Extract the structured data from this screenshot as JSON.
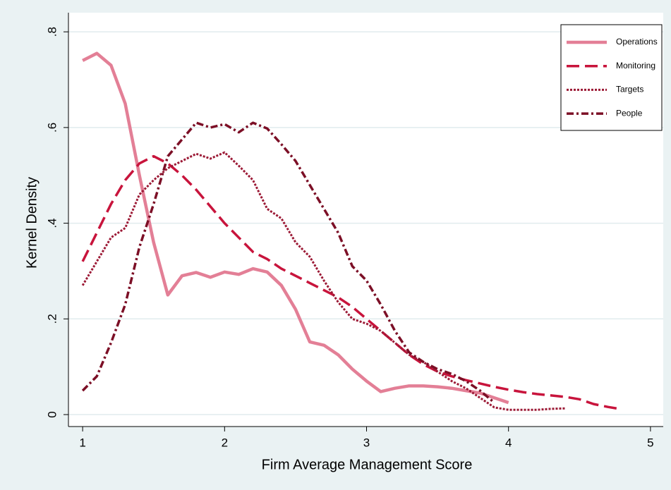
{
  "chart_data": {
    "type": "line",
    "xlabel": "Firm Average Management Score",
    "ylabel": "Kernel Density",
    "x": [
      1.0,
      1.1,
      1.2,
      1.3,
      1.4,
      1.5,
      1.6,
      1.7,
      1.8,
      1.9,
      2.0,
      2.1,
      2.2,
      2.3,
      2.4,
      2.5,
      2.6,
      2.7,
      2.8,
      2.9,
      3.0,
      3.1,
      3.2,
      3.3,
      3.4,
      3.5,
      3.6,
      3.7,
      3.8,
      3.9,
      4.0,
      4.1,
      4.2,
      4.3,
      4.4,
      4.5,
      4.6,
      4.7,
      4.8
    ],
    "series": [
      {
        "name": "Operations",
        "color": "#e37f96",
        "dash": "solid",
        "values": [
          0.74,
          0.755,
          0.73,
          0.65,
          0.5,
          0.36,
          0.25,
          0.29,
          0.297,
          0.287,
          0.298,
          0.293,
          0.305,
          0.298,
          0.27,
          0.22,
          0.152,
          0.145,
          0.125,
          0.095,
          0.07,
          0.048,
          0.055,
          0.06,
          0.06,
          0.058,
          0.055,
          0.05,
          0.045,
          0.035,
          0.025,
          null,
          null,
          null,
          null,
          null,
          null,
          null,
          null
        ]
      },
      {
        "name": "Monitoring",
        "color": "#c8143c",
        "dash": "dash",
        "values": [
          0.32,
          0.38,
          0.44,
          0.49,
          0.525,
          0.54,
          0.525,
          0.5,
          0.47,
          0.435,
          0.4,
          0.37,
          0.34,
          0.325,
          0.305,
          0.29,
          0.275,
          0.26,
          0.245,
          0.225,
          0.2,
          0.175,
          0.15,
          0.125,
          0.105,
          0.09,
          0.08,
          0.072,
          0.065,
          0.058,
          0.052,
          0.047,
          0.043,
          0.04,
          0.037,
          0.032,
          0.022,
          0.016,
          0.011
        ]
      },
      {
        "name": "Targets",
        "color": "#9c1a36",
        "dash": "dot",
        "values": [
          0.27,
          0.32,
          0.37,
          0.39,
          0.46,
          0.49,
          0.515,
          0.53,
          0.545,
          0.535,
          0.548,
          0.52,
          0.49,
          0.43,
          0.41,
          0.36,
          0.33,
          0.28,
          0.235,
          0.2,
          0.19,
          0.175,
          0.15,
          0.125,
          0.11,
          0.09,
          0.07,
          0.055,
          0.035,
          0.015,
          0.01,
          0.01,
          0.01,
          0.012,
          0.013,
          null,
          null,
          null,
          null
        ]
      },
      {
        "name": "People",
        "color": "#7c0f26",
        "dash": "dashdot",
        "values": [
          0.05,
          0.08,
          0.15,
          0.23,
          0.35,
          0.44,
          0.54,
          0.575,
          0.61,
          0.6,
          0.607,
          0.59,
          0.61,
          0.598,
          0.565,
          0.53,
          0.48,
          0.43,
          0.38,
          0.31,
          0.28,
          0.23,
          0.175,
          0.13,
          0.11,
          0.095,
          0.085,
          0.07,
          0.05,
          0.025,
          null,
          null,
          null,
          null,
          null,
          null,
          null,
          null,
          null
        ]
      }
    ],
    "xlim": [
      0.9,
      5.09
    ],
    "xticks": [
      1,
      2,
      3,
      4,
      5
    ],
    "ylim": [
      -0.025,
      0.84
    ],
    "yticks": [
      0,
      {
        "value": 0.2,
        "label": ".2"
      },
      {
        "value": 0.4,
        "label": ".4"
      },
      {
        "value": 0.6,
        "label": ".6"
      },
      {
        "value": 0.8,
        "label": ".8"
      }
    ],
    "grid": true,
    "legend": "top-right"
  }
}
